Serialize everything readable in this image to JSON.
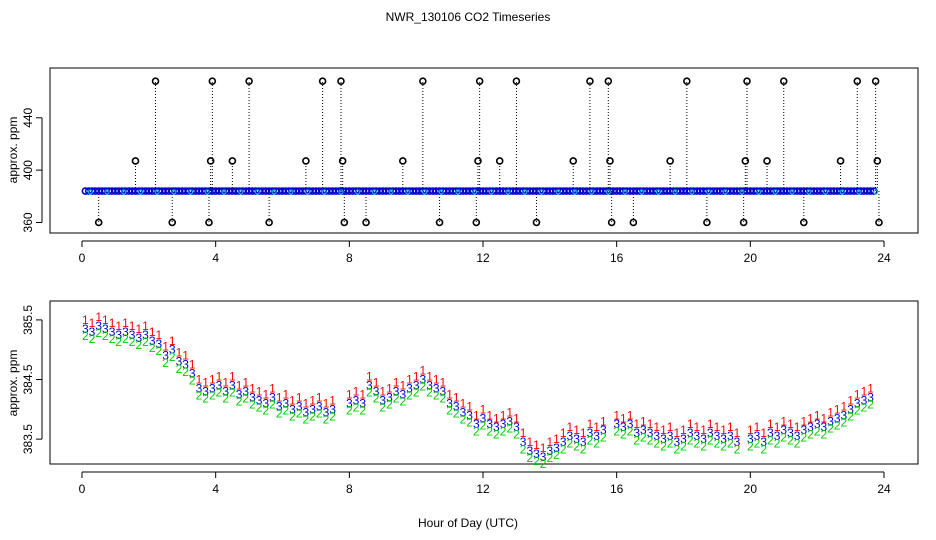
{
  "page": {
    "title": "NWR_130106  CO2 Timeseries",
    "xlabel": "Hour of Day (UTC)"
  },
  "chart_data": [
    {
      "type": "scatter",
      "panel": "top",
      "ylabel": "approx. ppm",
      "xlim": [
        0,
        24
      ],
      "ylim": [
        355,
        475
      ],
      "xticks": [
        "0",
        "4",
        "8",
        "12",
        "16",
        "20",
        "24"
      ],
      "yticks": [
        "360",
        "400",
        "440"
      ],
      "ytick_values": [
        360,
        400,
        440
      ],
      "baseline": 384,
      "colors": {
        "baseline": "#0000cc",
        "overlay": "#00cccc",
        "outlier": "#000000"
      },
      "outliers": [
        {
          "x": 0.5,
          "y": 360
        },
        {
          "x": 1.6,
          "y": 407
        },
        {
          "x": 2.2,
          "y": 468
        },
        {
          "x": 2.7,
          "y": 360
        },
        {
          "x": 3.8,
          "y": 360
        },
        {
          "x": 3.85,
          "y": 407
        },
        {
          "x": 3.9,
          "y": 468
        },
        {
          "x": 4.5,
          "y": 407
        },
        {
          "x": 5.0,
          "y": 468
        },
        {
          "x": 5.6,
          "y": 360
        },
        {
          "x": 6.7,
          "y": 407
        },
        {
          "x": 7.2,
          "y": 468
        },
        {
          "x": 7.75,
          "y": 468
        },
        {
          "x": 7.8,
          "y": 407
        },
        {
          "x": 7.85,
          "y": 360
        },
        {
          "x": 8.5,
          "y": 360
        },
        {
          "x": 9.6,
          "y": 407
        },
        {
          "x": 10.2,
          "y": 468
        },
        {
          "x": 10.7,
          "y": 360
        },
        {
          "x": 11.8,
          "y": 360
        },
        {
          "x": 11.85,
          "y": 407
        },
        {
          "x": 11.9,
          "y": 468
        },
        {
          "x": 12.5,
          "y": 407
        },
        {
          "x": 13.0,
          "y": 468
        },
        {
          "x": 13.6,
          "y": 360
        },
        {
          "x": 14.7,
          "y": 407
        },
        {
          "x": 15.2,
          "y": 468
        },
        {
          "x": 15.75,
          "y": 468
        },
        {
          "x": 15.8,
          "y": 407
        },
        {
          "x": 15.85,
          "y": 360
        },
        {
          "x": 16.5,
          "y": 360
        },
        {
          "x": 17.6,
          "y": 407
        },
        {
          "x": 18.1,
          "y": 468
        },
        {
          "x": 18.7,
          "y": 360
        },
        {
          "x": 19.8,
          "y": 360
        },
        {
          "x": 19.85,
          "y": 407
        },
        {
          "x": 19.9,
          "y": 468
        },
        {
          "x": 20.5,
          "y": 407
        },
        {
          "x": 21.0,
          "y": 468
        },
        {
          "x": 21.6,
          "y": 360
        },
        {
          "x": 22.7,
          "y": 407
        },
        {
          "x": 23.2,
          "y": 468
        },
        {
          "x": 23.75,
          "y": 468
        },
        {
          "x": 23.8,
          "y": 407
        },
        {
          "x": 23.85,
          "y": 360
        }
      ]
    },
    {
      "type": "scatter",
      "panel": "bottom",
      "ylabel": "approx. ppm",
      "xlim": [
        0,
        24
      ],
      "ylim": [
        383.15,
        385.75
      ],
      "xticks": [
        "0",
        "4",
        "8",
        "12",
        "16",
        "20",
        "24"
      ],
      "yticks": [
        "383.5",
        "384.5",
        "385.5"
      ],
      "ytick_values": [
        383.5,
        384.5,
        385.5
      ],
      "series": [
        {
          "symbol": "1",
          "color": "#ff0000",
          "offset": 0.15
        },
        {
          "symbol": "3",
          "color": "#0000cc",
          "offset": 0.0
        },
        {
          "symbol": "2",
          "color": "#00cc00",
          "offset": -0.12
        }
      ],
      "x": [
        0.1,
        0.3,
        0.5,
        0.7,
        0.9,
        1.1,
        1.3,
        1.5,
        1.7,
        1.9,
        2.1,
        2.3,
        2.5,
        2.7,
        2.9,
        3.1,
        3.3,
        3.5,
        3.7,
        3.9,
        4.1,
        4.3,
        4.5,
        4.7,
        4.9,
        5.1,
        5.3,
        5.5,
        5.7,
        5.9,
        6.1,
        6.3,
        6.5,
        6.7,
        6.9,
        7.1,
        7.3,
        7.5,
        8.0,
        8.2,
        8.4,
        8.6,
        8.8,
        9.0,
        9.2,
        9.4,
        9.6,
        9.8,
        10.0,
        10.2,
        10.4,
        10.6,
        10.8,
        11.0,
        11.2,
        11.4,
        11.6,
        11.8,
        12.0,
        12.2,
        12.4,
        12.6,
        12.8,
        13.0,
        13.2,
        13.4,
        13.6,
        13.8,
        14.0,
        14.2,
        14.4,
        14.6,
        14.8,
        15.0,
        15.2,
        15.4,
        15.6,
        16.0,
        16.2,
        16.4,
        16.6,
        16.8,
        17.0,
        17.2,
        17.4,
        17.6,
        17.8,
        18.0,
        18.2,
        18.4,
        18.6,
        18.8,
        19.0,
        19.2,
        19.4,
        19.6,
        20.0,
        20.2,
        20.4,
        20.6,
        20.8,
        21.0,
        21.2,
        21.4,
        21.6,
        21.8,
        22.0,
        22.2,
        22.4,
        22.6,
        22.8,
        23.0,
        23.2,
        23.4,
        23.6
      ],
      "y": [
        385.35,
        385.3,
        385.4,
        385.35,
        385.3,
        385.25,
        385.3,
        385.25,
        385.2,
        385.25,
        385.15,
        385.1,
        384.9,
        385.0,
        384.8,
        384.75,
        384.6,
        384.35,
        384.3,
        384.35,
        384.4,
        384.3,
        384.4,
        384.25,
        384.3,
        384.2,
        384.15,
        384.1,
        384.2,
        384.05,
        384.1,
        384.0,
        384.05,
        383.95,
        384.0,
        384.05,
        383.95,
        384.0,
        384.1,
        384.15,
        384.1,
        384.4,
        384.3,
        384.15,
        384.2,
        384.3,
        384.25,
        384.35,
        384.4,
        384.5,
        384.4,
        384.35,
        384.3,
        384.1,
        384.05,
        383.95,
        383.9,
        383.75,
        383.85,
        383.75,
        383.7,
        383.75,
        383.8,
        383.7,
        383.45,
        383.3,
        383.25,
        383.2,
        383.3,
        383.35,
        383.45,
        383.55,
        383.5,
        383.45,
        383.6,
        383.55,
        383.65,
        383.75,
        383.7,
        383.75,
        383.6,
        383.65,
        383.6,
        383.55,
        383.5,
        383.55,
        383.45,
        383.5,
        383.6,
        383.55,
        383.5,
        383.6,
        383.55,
        383.5,
        383.55,
        383.45,
        383.5,
        383.55,
        383.45,
        383.6,
        383.55,
        383.65,
        383.6,
        383.55,
        383.65,
        383.7,
        383.75,
        383.7,
        383.8,
        383.85,
        383.9,
        384.0,
        384.1,
        384.15,
        384.2
      ]
    }
  ]
}
